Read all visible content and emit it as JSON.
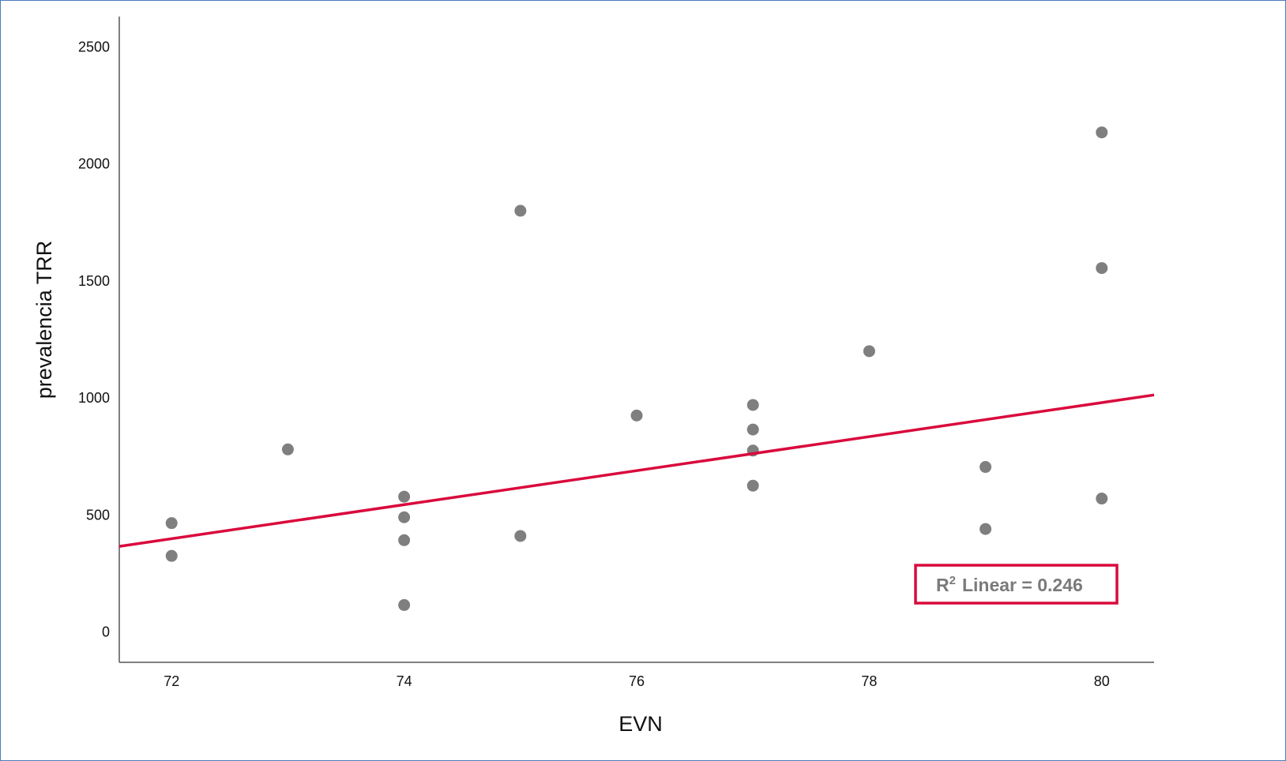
{
  "chart_data": {
    "type": "scatter",
    "title": "",
    "xlabel": "EVN",
    "ylabel": "prevalencia TRR",
    "xlim": [
      71.55,
      80.45
    ],
    "ylim": [
      -130,
      2630
    ],
    "x_ticks": [
      72,
      74,
      76,
      78,
      80
    ],
    "y_ticks": [
      0,
      500,
      1000,
      1500,
      2000,
      2500
    ],
    "grid": false,
    "points": [
      {
        "x": 72,
        "y": 465
      },
      {
        "x": 72,
        "y": 325
      },
      {
        "x": 73,
        "y": 780
      },
      {
        "x": 74,
        "y": 578
      },
      {
        "x": 74,
        "y": 490
      },
      {
        "x": 74,
        "y": 392
      },
      {
        "x": 74,
        "y": 115
      },
      {
        "x": 75,
        "y": 1800
      },
      {
        "x": 75,
        "y": 410
      },
      {
        "x": 76,
        "y": 925
      },
      {
        "x": 77,
        "y": 970
      },
      {
        "x": 77,
        "y": 865
      },
      {
        "x": 77,
        "y": 775
      },
      {
        "x": 77,
        "y": 625
      },
      {
        "x": 78,
        "y": 1200
      },
      {
        "x": 79,
        "y": 705
      },
      {
        "x": 79,
        "y": 440
      },
      {
        "x": 80,
        "y": 2135
      },
      {
        "x": 80,
        "y": 1555
      },
      {
        "x": 80,
        "y": 570
      }
    ],
    "fit_line": {
      "type": "linear",
      "intercept": -4836,
      "slope": 72.7,
      "color": "#d90a3c"
    },
    "point_color": "#7f7f7f",
    "annotation": {
      "r_label": "R",
      "r_exponent": "2",
      "text": "Linear = 0.246",
      "border_color": "#d90a3c",
      "position": "bottom-right"
    }
  }
}
